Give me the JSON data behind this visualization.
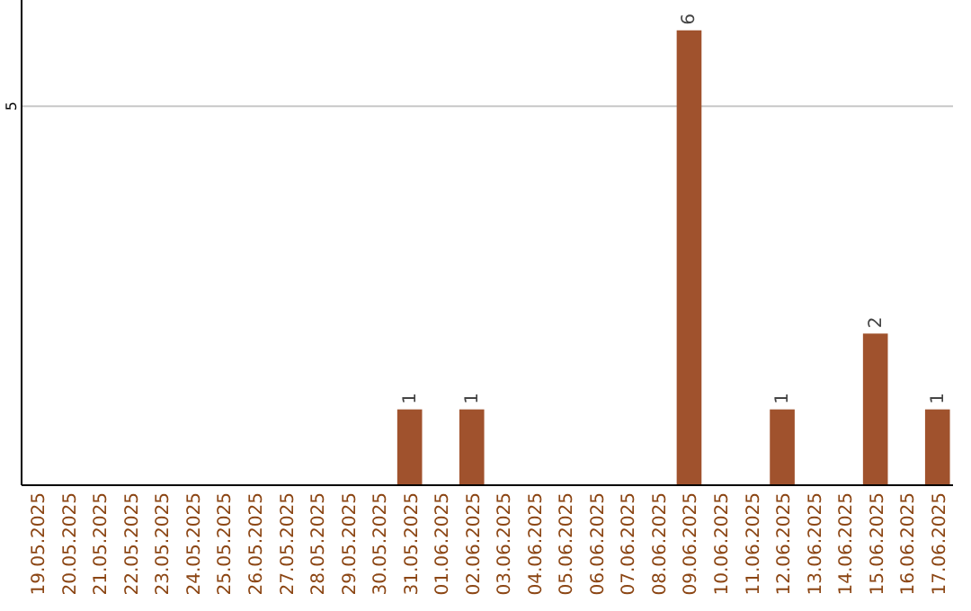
{
  "chart_data": {
    "type": "bar",
    "categories": [
      "19.05.2025",
      "20.05.2025",
      "21.05.2025",
      "22.05.2025",
      "23.05.2025",
      "24.05.2025",
      "25.05.2025",
      "26.05.2025",
      "27.05.2025",
      "28.05.2025",
      "29.05.2025",
      "30.05.2025",
      "31.05.2025",
      "01.06.2025",
      "02.06.2025",
      "03.06.2025",
      "04.06.2025",
      "05.06.2025",
      "06.06.2025",
      "07.06.2025",
      "08.06.2025",
      "09.06.2025",
      "10.06.2025",
      "11.06.2025",
      "12.06.2025",
      "13.06.2025",
      "14.06.2025",
      "15.06.2025",
      "16.06.2025",
      "17.06.2025"
    ],
    "values": [
      null,
      null,
      null,
      null,
      null,
      null,
      null,
      null,
      null,
      null,
      null,
      null,
      1,
      null,
      1,
      null,
      null,
      null,
      null,
      null,
      null,
      6,
      null,
      null,
      1,
      null,
      null,
      2,
      null,
      1
    ],
    "data_labels": true,
    "color": "#a0522d",
    "ylim": [
      0,
      6.4
    ],
    "ref_lines": [
      {
        "axis": "y",
        "value": 5,
        "label": "5",
        "color": "#c8c8c8"
      }
    ]
  }
}
